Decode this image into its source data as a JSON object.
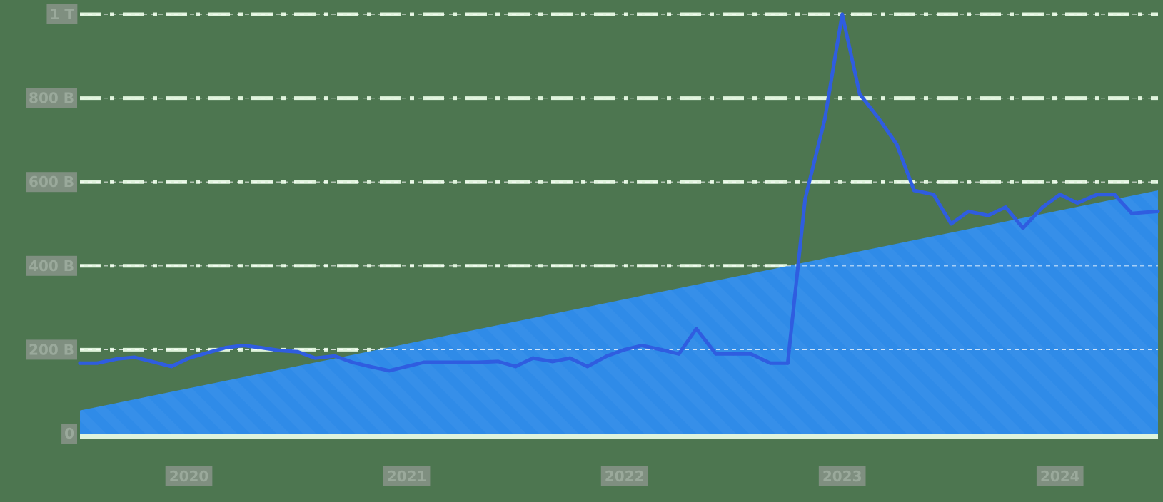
{
  "colors": {
    "background": "#4d7650",
    "gridline": "#dff3dc",
    "area_fill": "#2f8be8",
    "line": "#2f5de0",
    "tick_label_box": "#7f8f80",
    "tick_label_text": "#9aa99b"
  },
  "chart_data": {
    "type": "line",
    "title": "",
    "xlabel": "",
    "ylabel": "",
    "grid": true,
    "legend": "none",
    "xlim": [
      2019.5,
      2024.45
    ],
    "ylim": [
      0,
      1000
    ],
    "x_ticks": [
      2020,
      2021,
      2022,
      2023,
      2024
    ],
    "x_tick_labels": [
      "2020",
      "2021",
      "2022",
      "2023",
      "2024"
    ],
    "y_ticks": [
      0,
      200,
      400,
      600,
      800,
      1000
    ],
    "y_tick_labels": [
      "0",
      "200 B",
      "400 B",
      "600 B",
      "800 B",
      "1 T"
    ],
    "series": [
      {
        "type": "area",
        "x": [
          2019.5,
          2024.45
        ],
        "y": [
          55,
          580
        ]
      },
      {
        "type": "line",
        "x": [
          2019.5,
          2019.58,
          2019.67,
          2019.75,
          2019.83,
          2019.92,
          2020.0,
          2020.08,
          2020.17,
          2020.25,
          2020.33,
          2020.42,
          2020.5,
          2020.58,
          2020.67,
          2020.75,
          2020.83,
          2020.92,
          2021.0,
          2021.08,
          2021.17,
          2021.25,
          2021.33,
          2021.42,
          2021.5,
          2021.58,
          2021.67,
          2021.75,
          2021.83,
          2021.92,
          2022.0,
          2022.08,
          2022.17,
          2022.25,
          2022.33,
          2022.42,
          2022.5,
          2022.58,
          2022.67,
          2022.75,
          2022.83,
          2022.92,
          2023.0,
          2023.08,
          2023.17,
          2023.25,
          2023.33,
          2023.42,
          2023.5,
          2023.58,
          2023.67,
          2023.75,
          2023.83,
          2023.92,
          2024.0,
          2024.08,
          2024.17,
          2024.25,
          2024.33,
          2024.45
        ],
        "y": [
          168,
          168,
          178,
          182,
          172,
          160,
          180,
          192,
          205,
          210,
          205,
          198,
          195,
          180,
          185,
          170,
          160,
          150,
          160,
          170,
          170,
          170,
          170,
          172,
          160,
          180,
          172,
          180,
          160,
          185,
          200,
          210,
          200,
          190,
          250,
          190,
          190,
          190,
          168,
          168,
          560,
          750,
          1000,
          810,
          750,
          690,
          580,
          570,
          500,
          530,
          520,
          540,
          490,
          540,
          570,
          550,
          570,
          570,
          525,
          530
        ]
      }
    ]
  }
}
